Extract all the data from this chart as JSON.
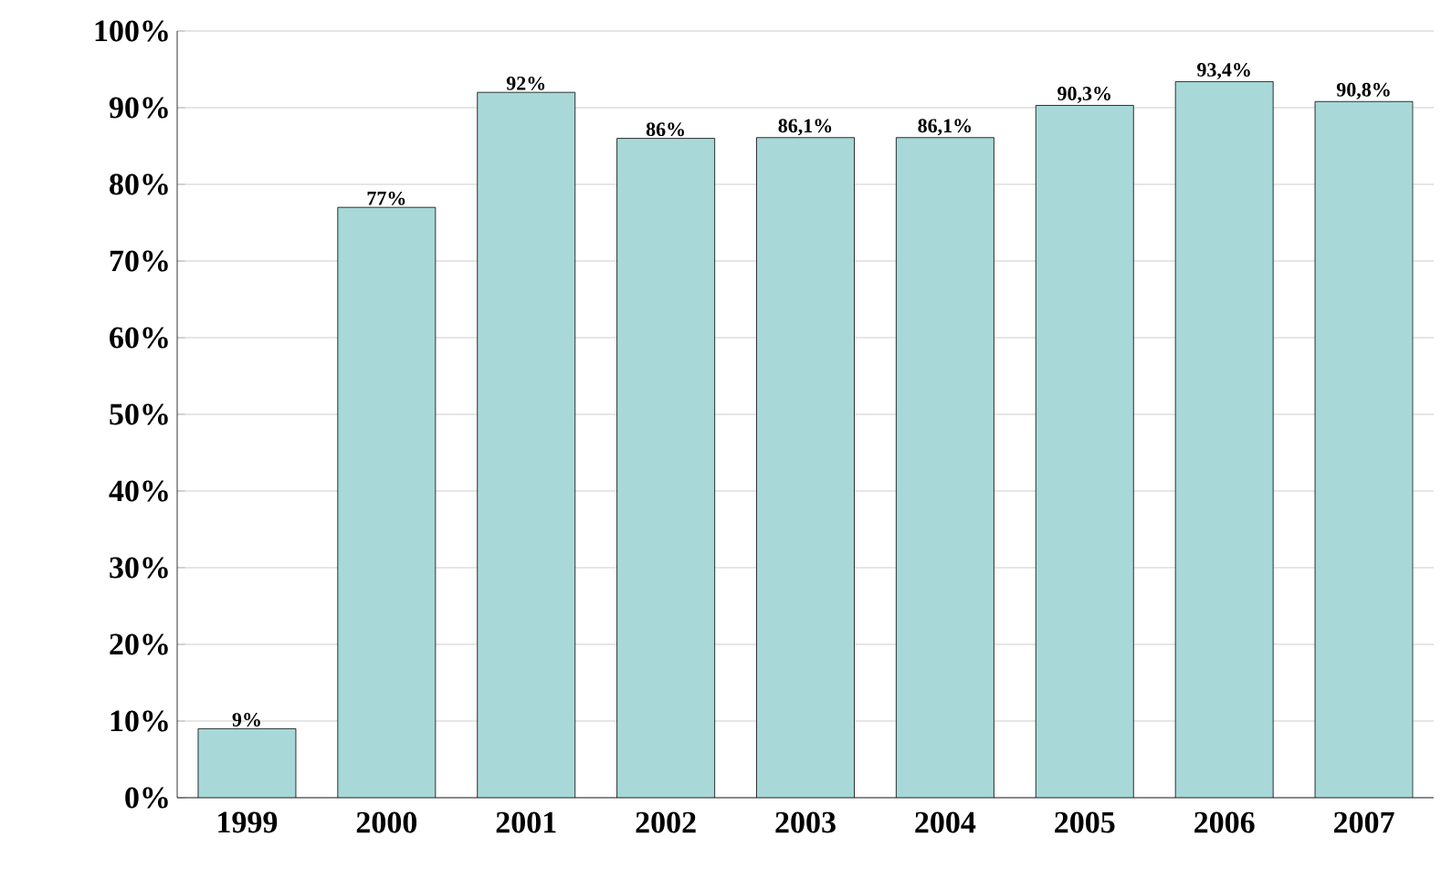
{
  "chart_data": {
    "type": "bar",
    "categories": [
      "1999",
      "2000",
      "2001",
      "2002",
      "2003",
      "2004",
      "2005",
      "2006",
      "2007"
    ],
    "values": [
      9,
      77,
      92,
      86,
      86.1,
      86.1,
      90.3,
      93.4,
      90.8
    ],
    "value_labels": [
      "9%",
      "77%",
      "92%",
      "86%",
      "86,1%",
      "86,1%",
      "90,3%",
      "93,4%",
      "90,8%"
    ],
    "color": "#a8d8d8",
    "ylim": [
      0,
      100
    ],
    "yticks": [
      {
        "value": 0,
        "label": "0%"
      },
      {
        "value": 10,
        "label": "10%"
      },
      {
        "value": 20,
        "label": "20%"
      },
      {
        "value": 30,
        "label": "30%"
      },
      {
        "value": 40,
        "label": "40%"
      },
      {
        "value": 50,
        "label": "50%"
      },
      {
        "value": 60,
        "label": "60%"
      },
      {
        "value": 70,
        "label": "70%"
      },
      {
        "value": 80,
        "label": "80%"
      },
      {
        "value": 90,
        "label": "90%"
      },
      {
        "value": 100,
        "label": "100%"
      }
    ],
    "grid": "y"
  }
}
